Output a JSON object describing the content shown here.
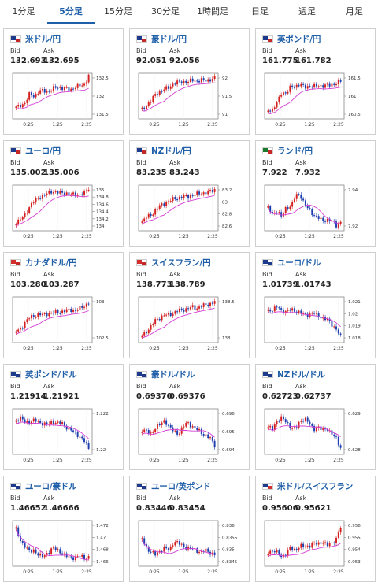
{
  "tabs": [
    {
      "label": "1分足",
      "active": false
    },
    {
      "label": "5分足",
      "active": true
    },
    {
      "label": "15分足",
      "active": false
    },
    {
      "label": "30分足",
      "active": false
    },
    {
      "label": "1時間足",
      "active": false
    },
    {
      "label": "日足",
      "active": false
    },
    {
      "label": "週足",
      "active": false
    },
    {
      "label": "月足",
      "active": false
    }
  ],
  "bid_label": "Bid",
  "ask_label": "Ask",
  "x_ticks": [
    "0:25",
    "1:25",
    "2:25"
  ],
  "colors": {
    "up": "#d42020",
    "down": "#1f3fae",
    "ma": "#d63cd6",
    "link": "#1f5fa8"
  },
  "pairs": [
    {
      "name": "米ドル/円",
      "bid": "132.693",
      "ask": "132.695",
      "flag": [
        "#1e3a8a",
        "#c62828"
      ],
      "y_ticks": [
        "132.5",
        "132",
        "131.5"
      ]
    },
    {
      "name": "豪ドル/円",
      "bid": "92.051",
      "ask": "92.056",
      "flag": [
        "#1e3a8a",
        "#c62828"
      ],
      "y_ticks": [
        "92",
        "91.5",
        "91"
      ]
    },
    {
      "name": "英ポンド/円",
      "bid": "161.775",
      "ask": "161.782",
      "flag": [
        "#1e3a8a",
        "#c62828"
      ],
      "y_ticks": [
        "161.5",
        "161",
        "160.5"
      ]
    },
    {
      "name": "ユーロ/円",
      "bid": "135.002",
      "ask": "135.006",
      "flag": [
        "#1e3a8a",
        "#c62828"
      ],
      "y_ticks": [
        "135",
        "134.8",
        "134.6",
        "134.4",
        "134.2",
        "134"
      ]
    },
    {
      "name": "NZドル/円",
      "bid": "83.235",
      "ask": "83.243",
      "flag": [
        "#1e3a8a",
        "#c62828"
      ],
      "y_ticks": [
        "83.2",
        "83",
        "82.8",
        "82.6"
      ]
    },
    {
      "name": "ランド/円",
      "bid": "7.922",
      "ask": "7.932",
      "flag": [
        "#1b7a2e",
        "#c62828"
      ],
      "y_ticks": [
        "7.94",
        "7.92"
      ]
    },
    {
      "name": "カナダドル/円",
      "bid": "103.280",
      "ask": "103.287",
      "flag": [
        "#d32f2f",
        "#c62828"
      ],
      "y_ticks": [
        "103",
        "102.5"
      ]
    },
    {
      "name": "スイスフラン/円",
      "bid": "138.773",
      "ask": "138.789",
      "flag": [
        "#d32f2f",
        "#c62828"
      ],
      "y_ticks": [
        "138.5",
        "138"
      ]
    },
    {
      "name": "ユーロ/ドル",
      "bid": "1.01739",
      "ask": "1.01743",
      "flag": [
        "#1e3a8a",
        "#1e3a8a"
      ],
      "y_ticks": [
        "1.021",
        "1.02",
        "1.019",
        "1.018"
      ]
    },
    {
      "name": "英ポンド/ドル",
      "bid": "1.21914",
      "ask": "1.21921",
      "flag": [
        "#1e3a8a",
        "#1e3a8a"
      ],
      "y_ticks": [
        "1.222",
        "1.22"
      ]
    },
    {
      "name": "豪ドル/ドル",
      "bid": "0.69370",
      "ask": "0.69376",
      "flag": [
        "#1e3a8a",
        "#1e3a8a"
      ],
      "y_ticks": [
        "0.696",
        "0.695",
        "0.694"
      ]
    },
    {
      "name": "NZドル/ドル",
      "bid": "0.62723",
      "ask": "0.62737",
      "flag": [
        "#1e3a8a",
        "#1e3a8a"
      ],
      "y_ticks": [
        "0.629",
        "0.628"
      ]
    },
    {
      "name": "ユーロ/豪ドル",
      "bid": "1.46652",
      "ask": "1.46666",
      "flag": [
        "#1e3a8a",
        "#1e3a8a"
      ],
      "y_ticks": [
        "1.472",
        "1.47",
        "1.468",
        "1.466"
      ]
    },
    {
      "name": "ユーロ/英ポンド",
      "bid": "0.83446",
      "ask": "0.83454",
      "flag": [
        "#1e3a8a",
        "#1e3a8a"
      ],
      "y_ticks": [
        "0.836",
        "0.8355",
        "0.835",
        "0.8345"
      ]
    },
    {
      "name": "米ドル/スイスフラン",
      "bid": "0.95606",
      "ask": "0.95621",
      "flag": [
        "#1e3a8a",
        "#d32f2f"
      ],
      "y_ticks": [
        "0.956",
        "0.955",
        "0.954",
        "0.953"
      ]
    }
  ],
  "chart_data": [
    {
      "type": "candlestick",
      "title": "米ドル/円",
      "trend": [
        0.25,
        0.3,
        0.35,
        0.55,
        0.5,
        0.6,
        0.62,
        0.6,
        0.65,
        0.7,
        0.68,
        0.66,
        0.64,
        0.7,
        0.72,
        0.75,
        0.95
      ]
    },
    {
      "type": "candlestick",
      "title": "豪ドル/円",
      "trend": [
        0.2,
        0.3,
        0.4,
        0.55,
        0.6,
        0.65,
        0.7,
        0.78,
        0.8,
        0.82,
        0.8,
        0.85,
        0.83,
        0.85,
        0.84,
        0.86,
        0.9
      ]
    },
    {
      "type": "candlestick",
      "title": "英ポンド/円",
      "trend": [
        0.2,
        0.2,
        0.35,
        0.6,
        0.55,
        0.7,
        0.72,
        0.75,
        0.7,
        0.72,
        0.7,
        0.74,
        0.72,
        0.73,
        0.75,
        0.78,
        0.82
      ]
    },
    {
      "type": "candlestick",
      "title": "ユーロ/円",
      "trend": [
        0.2,
        0.25,
        0.35,
        0.55,
        0.65,
        0.72,
        0.78,
        0.82,
        0.86,
        0.85,
        0.82,
        0.83,
        0.8,
        0.78,
        0.8,
        0.82,
        0.92
      ]
    },
    {
      "type": "candlestick",
      "title": "NZドル/円",
      "trend": [
        0.2,
        0.3,
        0.35,
        0.45,
        0.55,
        0.6,
        0.65,
        0.7,
        0.72,
        0.75,
        0.74,
        0.78,
        0.8,
        0.82,
        0.84,
        0.86,
        0.9
      ]
    },
    {
      "type": "candlestick",
      "title": "ランド/円",
      "trend": [
        0.5,
        0.35,
        0.45,
        0.3,
        0.5,
        0.55,
        0.75,
        0.8,
        0.6,
        0.45,
        0.35,
        0.3,
        0.2,
        0.25,
        0.22,
        0.1,
        0.2
      ]
    },
    {
      "type": "candlestick",
      "title": "カナダドル/円",
      "trend": [
        0.25,
        0.3,
        0.45,
        0.55,
        0.58,
        0.62,
        0.6,
        0.64,
        0.65,
        0.66,
        0.68,
        0.7,
        0.72,
        0.7,
        0.75,
        0.8,
        0.88
      ]
    },
    {
      "type": "candlestick",
      "title": "スイスフラン/円",
      "trend": [
        0.15,
        0.25,
        0.35,
        0.5,
        0.55,
        0.6,
        0.62,
        0.65,
        0.7,
        0.72,
        0.74,
        0.78,
        0.75,
        0.8,
        0.82,
        0.85,
        0.9
      ]
    },
    {
      "type": "candlestick",
      "title": "ユーロ/ドル",
      "trend": [
        0.7,
        0.72,
        0.78,
        0.7,
        0.68,
        0.72,
        0.7,
        0.66,
        0.6,
        0.62,
        0.65,
        0.58,
        0.55,
        0.5,
        0.4,
        0.3,
        0.12
      ]
    },
    {
      "type": "candlestick",
      "title": "英ポンド/ドル",
      "trend": [
        0.75,
        0.8,
        0.7,
        0.72,
        0.75,
        0.7,
        0.68,
        0.65,
        0.72,
        0.7,
        0.68,
        0.6,
        0.55,
        0.45,
        0.4,
        0.3,
        0.12
      ]
    },
    {
      "type": "candlestick",
      "title": "豪ドル/ドル",
      "trend": [
        0.55,
        0.5,
        0.45,
        0.6,
        0.65,
        0.75,
        0.6,
        0.5,
        0.45,
        0.6,
        0.7,
        0.62,
        0.55,
        0.48,
        0.42,
        0.35,
        0.2
      ]
    },
    {
      "type": "candlestick",
      "title": "NZドル/ドル",
      "trend": [
        0.6,
        0.55,
        0.75,
        0.8,
        0.7,
        0.6,
        0.55,
        0.72,
        0.8,
        0.68,
        0.55,
        0.6,
        0.52,
        0.58,
        0.45,
        0.35,
        0.15
      ]
    },
    {
      "type": "candlestick",
      "title": "ユーロ/豪ドル",
      "trend": [
        0.8,
        0.55,
        0.45,
        0.3,
        0.35,
        0.25,
        0.2,
        0.3,
        0.4,
        0.35,
        0.3,
        0.22,
        0.18,
        0.2,
        0.22,
        0.18,
        0.2
      ]
    },
    {
      "type": "candlestick",
      "title": "ユーロ/英ポンド",
      "trend": [
        0.6,
        0.4,
        0.3,
        0.25,
        0.35,
        0.4,
        0.35,
        0.55,
        0.5,
        0.45,
        0.4,
        0.38,
        0.35,
        0.3,
        0.35,
        0.3,
        0.25
      ]
    },
    {
      "type": "candlestick",
      "title": "米ドル/スイスフラン",
      "trend": [
        0.3,
        0.35,
        0.3,
        0.2,
        0.3,
        0.4,
        0.35,
        0.45,
        0.42,
        0.45,
        0.5,
        0.48,
        0.55,
        0.45,
        0.5,
        0.6,
        0.85
      ]
    }
  ]
}
